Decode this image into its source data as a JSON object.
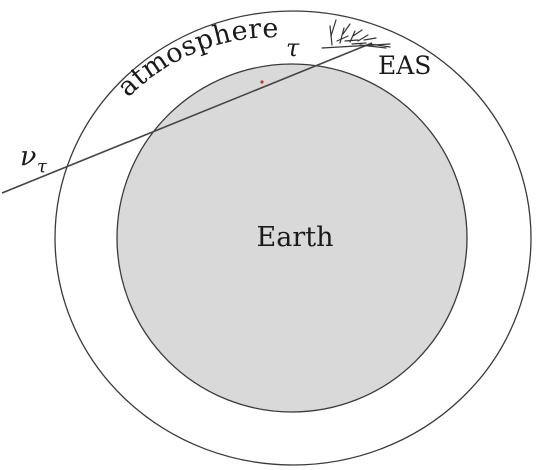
{
  "labels": {
    "earth": "Earth",
    "atmosphere": "atmosphere",
    "eas": "EAS",
    "tau": "τ",
    "nu_base": "ν",
    "nu_sub": "τ"
  },
  "colors": {
    "earth_fill": "#d9d9d9",
    "stroke": "#3a3a3a",
    "exit_point": "#c0392b"
  }
}
